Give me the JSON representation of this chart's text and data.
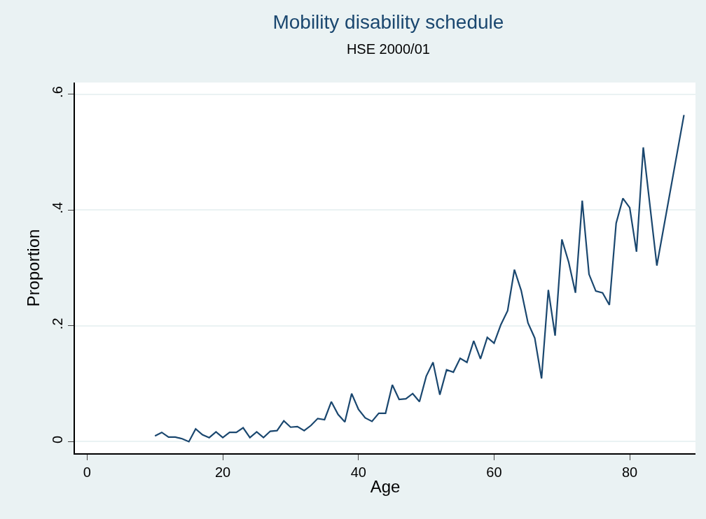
{
  "chart_data": {
    "type": "line",
    "title": "Mobility disability schedule",
    "subtitle": "HSE 2000/01",
    "xlabel": "Age",
    "ylabel": "Proportion",
    "x": [
      10,
      11,
      12,
      13,
      14,
      15,
      16,
      17,
      18,
      19,
      20,
      21,
      22,
      23,
      24,
      25,
      26,
      27,
      28,
      29,
      30,
      31,
      32,
      33,
      34,
      35,
      36,
      37,
      38,
      39,
      40,
      41,
      42,
      43,
      44,
      45,
      46,
      47,
      48,
      49,
      50,
      51,
      52,
      53,
      54,
      55,
      56,
      57,
      58,
      59,
      60,
      61,
      62,
      63,
      64,
      65,
      66,
      67,
      68,
      69,
      70,
      71,
      72,
      73,
      74,
      75,
      76,
      77,
      78,
      79,
      80,
      81,
      82,
      84,
      88
    ],
    "series": [
      {
        "color": "#1a476f",
        "values": [
          0.01,
          0.016,
          0.008,
          0.008,
          0.005,
          0.0,
          0.022,
          0.012,
          0.007,
          0.017,
          0.007,
          0.016,
          0.016,
          0.024,
          0.007,
          0.017,
          0.007,
          0.018,
          0.019,
          0.036,
          0.025,
          0.026,
          0.019,
          0.028,
          0.04,
          0.038,
          0.069,
          0.047,
          0.034,
          0.083,
          0.056,
          0.041,
          0.035,
          0.049,
          0.049,
          0.098,
          0.073,
          0.074,
          0.083,
          0.069,
          0.113,
          0.137,
          0.081,
          0.124,
          0.12,
          0.144,
          0.137,
          0.174,
          0.143,
          0.18,
          0.17,
          0.202,
          0.226,
          0.297,
          0.261,
          0.205,
          0.179,
          0.109,
          0.262,
          0.183,
          0.349,
          0.31,
          0.257,
          0.416,
          0.289,
          0.26,
          0.257,
          0.236,
          0.377,
          0.42,
          0.404,
          0.328,
          0.508,
          0.304,
          0.564
        ]
      }
    ],
    "xlim": [
      -1.8,
      89.7
    ],
    "xticks": [
      0,
      20,
      40,
      60,
      80
    ],
    "ylim": [
      -0.02,
      0.62
    ],
    "yticks": [
      {
        "value": 0,
        "label": "0"
      },
      {
        "value": 0.2,
        "label": ".2"
      },
      {
        "value": 0.4,
        "label": ".4"
      },
      {
        "value": 0.6,
        "label": ".6"
      }
    ],
    "grid": "y",
    "marker": "none",
    "line_style": "solid"
  }
}
